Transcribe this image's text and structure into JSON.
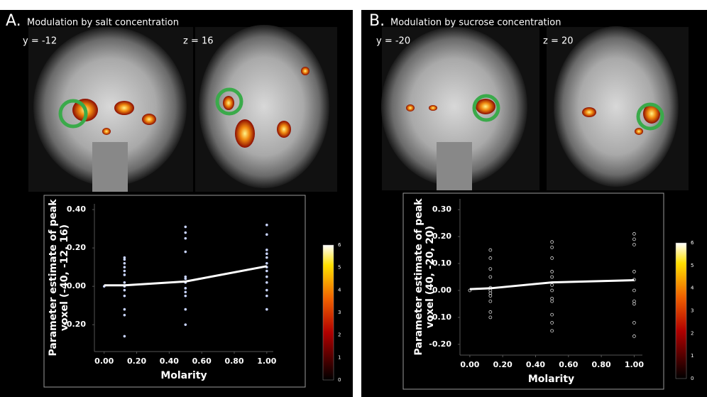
{
  "panels": [
    {
      "label": "A.",
      "title": "Modulation by salt concentration",
      "slices": [
        "y = -12",
        "z = 16"
      ],
      "colorbar_ticks": [
        0,
        1,
        2,
        3,
        4,
        5,
        6
      ]
    },
    {
      "label": "B.",
      "title": "Modulation by sucrose concentration",
      "slices": [
        "y = -20",
        "z = 20"
      ],
      "colorbar_ticks": [
        0,
        1,
        2,
        3,
        4,
        5,
        6
      ]
    }
  ],
  "chart_data": [
    {
      "type": "scatter",
      "xlabel": "Molarity",
      "ylabel": [
        "Parameter estimate of peak",
        "voxel (-40, -12, 16)"
      ],
      "xlim": [
        -0.06,
        1.04
      ],
      "ylim": [
        -0.34,
        0.43
      ],
      "xticks": [
        {
          "value": 0,
          "label": "0.00"
        },
        {
          "value": 0.2,
          "label": "0.20"
        },
        {
          "value": 0.4,
          "label": "0.40"
        },
        {
          "value": 0.6,
          "label": "0.60"
        },
        {
          "value": 0.8,
          "label": "0.80"
        },
        {
          "value": 1,
          "label": "1.00"
        }
      ],
      "yticks": [
        {
          "value": 0.4,
          "label": "0.40"
        },
        {
          "value": 0.2,
          "label": "0.20"
        },
        {
          "value": 0,
          "label": "0.00"
        },
        {
          "value": -0.2,
          "label": "-0.20"
        }
      ],
      "series": [
        {
          "type": "scatter",
          "marker": "filled",
          "color": "#c8d4ff",
          "x": [
            0,
            0.125,
            0.125,
            0.125,
            0.125,
            0.125,
            0.125,
            0.125,
            0.125,
            0.125,
            0.125,
            0.125,
            0.125,
            0.125,
            0.5,
            0.5,
            0.5,
            0.5,
            0.5,
            0.5,
            0.5,
            0.5,
            0.5,
            0.5,
            0.5,
            0.5,
            1,
            1,
            1,
            1,
            1,
            1,
            1,
            1,
            1,
            1,
            1,
            1,
            1
          ],
          "values": [
            0.0,
            0.15,
            0.14,
            0.12,
            0.1,
            0.08,
            0.06,
            0.02,
            0.0,
            -0.02,
            -0.05,
            -0.12,
            -0.15,
            -0.26,
            0.31,
            0.28,
            0.25,
            0.18,
            0.05,
            0.04,
            0.02,
            -0.01,
            -0.03,
            -0.05,
            -0.12,
            -0.2,
            0.32,
            0.27,
            0.19,
            0.17,
            0.15,
            0.12,
            0.1,
            0.08,
            0.05,
            0.02,
            -0.02,
            -0.05,
            -0.12
          ]
        },
        {
          "type": "line",
          "color": "#ffffff",
          "x": [
            0,
            0.125,
            0.5,
            1
          ],
          "values": [
            0.005,
            0.005,
            0.025,
            0.105
          ]
        }
      ]
    },
    {
      "type": "scatter",
      "xlabel": "Molarity",
      "ylabel": [
        "Parameter estimate of peak",
        "voxel (40, -20, 20)"
      ],
      "xlim": [
        -0.06,
        1.05
      ],
      "ylim": [
        -0.24,
        0.34
      ],
      "xticks": [
        {
          "value": 0,
          "label": "0.00"
        },
        {
          "value": 0.2,
          "label": "0.20"
        },
        {
          "value": 0.4,
          "label": "0.40"
        },
        {
          "value": 0.6,
          "label": "0.60"
        },
        {
          "value": 0.8,
          "label": "0.80"
        },
        {
          "value": 1,
          "label": "1.00"
        }
      ],
      "yticks": [
        {
          "value": 0.3,
          "label": "0.30"
        },
        {
          "value": 0.2,
          "label": "0.20"
        },
        {
          "value": 0.1,
          "label": "0.10"
        },
        {
          "value": 0,
          "label": "0.00"
        },
        {
          "value": -0.1,
          "label": "-0.10"
        },
        {
          "value": -0.2,
          "label": "-0.20"
        }
      ],
      "series": [
        {
          "type": "scatter",
          "marker": "hollow",
          "color": "#d8d8d8",
          "x": [
            0,
            0.125,
            0.125,
            0.125,
            0.125,
            0.125,
            0.125,
            0.125,
            0.125,
            0.125,
            0.125,
            0.125,
            0.5,
            0.5,
            0.5,
            0.5,
            0.5,
            0.5,
            0.5,
            0.5,
            0.5,
            0.5,
            0.5,
            0.5,
            1,
            1,
            1,
            1,
            1,
            1,
            1,
            1,
            1,
            1
          ],
          "values": [
            0.0,
            0.15,
            0.12,
            0.08,
            0.05,
            0.01,
            0.0,
            -0.01,
            -0.02,
            -0.04,
            -0.08,
            -0.1,
            0.18,
            0.16,
            0.12,
            0.07,
            0.05,
            0.02,
            0.0,
            -0.03,
            -0.04,
            -0.09,
            -0.12,
            -0.15,
            0.21,
            0.19,
            0.17,
            0.07,
            0.04,
            0.0,
            -0.04,
            -0.05,
            -0.12,
            -0.17
          ]
        },
        {
          "type": "line",
          "color": "#ffffff",
          "x": [
            0,
            0.125,
            0.5,
            1
          ],
          "values": [
            0.005,
            0.008,
            0.03,
            0.038
          ]
        }
      ]
    }
  ]
}
